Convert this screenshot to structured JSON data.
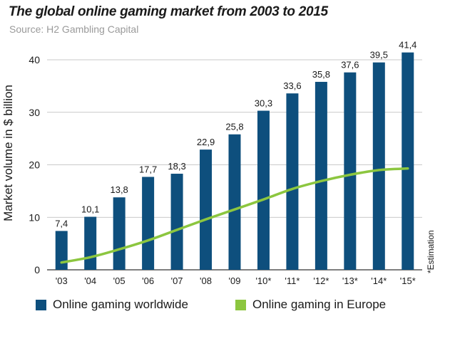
{
  "chart_data": {
    "type": "bar",
    "title": "The global online gaming market from 2003 to 2015",
    "subtitle": "Source: H2 Gambling Capital",
    "ylabel": "Market volume in $ billion",
    "xlabel": "",
    "ylim": [
      0,
      40
    ],
    "yticks": [
      0,
      10,
      20,
      30,
      40
    ],
    "grid": true,
    "categories": [
      "'03",
      "'04",
      "'05",
      "'06",
      "'07",
      "'08",
      "'09",
      "'10*",
      "'11*",
      "'12*",
      "'13*",
      "'14*",
      "'15*"
    ],
    "series": [
      {
        "name": "Online gaming worldwide",
        "type": "bar",
        "color": "#0e4f7d",
        "values": [
          7.4,
          10.1,
          13.8,
          17.7,
          18.3,
          22.9,
          25.8,
          30.3,
          33.6,
          35.8,
          37.6,
          39.5,
          41.4
        ],
        "labels": [
          "7,4",
          "10,1",
          "13,8",
          "17,7",
          "18,3",
          "22,9",
          "25,8",
          "30,3",
          "33,6",
          "35,8",
          "37,6",
          "39,5",
          "41,4"
        ]
      },
      {
        "name": "Online gaming in Europe",
        "type": "line",
        "color": "#8cc63f",
        "values": [
          1.4,
          2.4,
          3.9,
          5.6,
          7.6,
          9.6,
          11.5,
          13.4,
          15.4,
          16.9,
          18.1,
          19.0,
          19.3
        ]
      }
    ],
    "legend": "bottom",
    "note": "*Estimation"
  }
}
